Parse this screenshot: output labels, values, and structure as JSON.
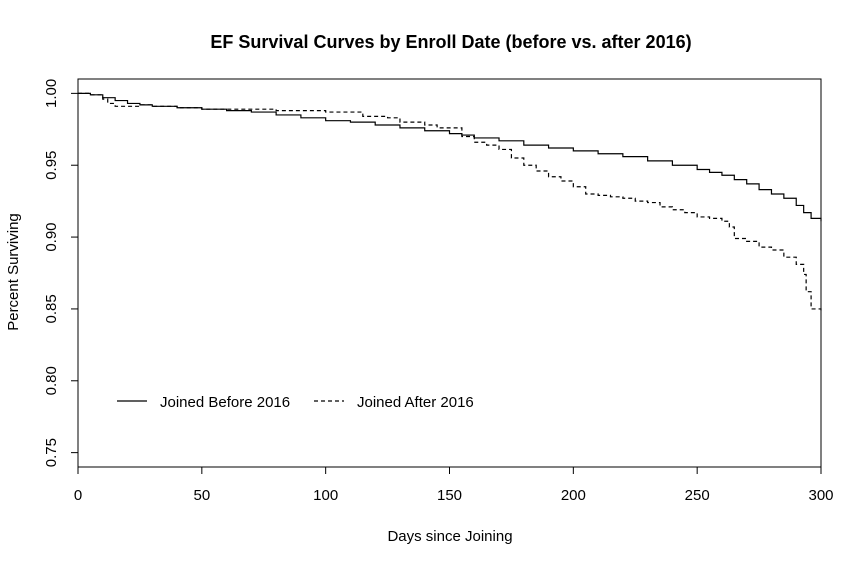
{
  "chart_data": {
    "type": "line",
    "title": "EF Survival Curves by Enroll Date (before vs. after 2016)",
    "xlabel": "Days since Joining",
    "ylabel": "Percent Surviving",
    "xlim": [
      0,
      300
    ],
    "ylim": [
      0.74,
      1.01
    ],
    "xticks": [
      0,
      50,
      100,
      150,
      200,
      250,
      300
    ],
    "xtick_labels": [
      "0",
      "50",
      "100",
      "150",
      "200",
      "250",
      "300"
    ],
    "yticks": [
      0.75,
      0.8,
      0.85,
      0.9,
      0.95,
      1.0
    ],
    "ytick_labels": [
      "0.75",
      "0.80",
      "0.85",
      "0.90",
      "0.95",
      "1.00"
    ],
    "grid": false,
    "legend_position": "bottom-left",
    "series": [
      {
        "name": "Joined Before 2016",
        "style": "solid",
        "color": "#000000",
        "x": [
          0,
          5,
          10,
          15,
          20,
          25,
          30,
          40,
          50,
          60,
          70,
          80,
          90,
          100,
          110,
          120,
          130,
          140,
          150,
          155,
          160,
          170,
          180,
          190,
          200,
          210,
          220,
          230,
          240,
          250,
          255,
          260,
          265,
          270,
          275,
          280,
          285,
          290,
          293,
          296,
          300
        ],
        "y": [
          1.0,
          0.999,
          0.997,
          0.995,
          0.993,
          0.992,
          0.991,
          0.99,
          0.989,
          0.988,
          0.987,
          0.985,
          0.983,
          0.981,
          0.98,
          0.978,
          0.976,
          0.974,
          0.972,
          0.971,
          0.969,
          0.967,
          0.964,
          0.962,
          0.96,
          0.958,
          0.956,
          0.953,
          0.95,
          0.947,
          0.945,
          0.943,
          0.94,
          0.937,
          0.933,
          0.93,
          0.927,
          0.922,
          0.917,
          0.913,
          0.911
        ]
      },
      {
        "name": "Joined After 2016",
        "style": "dashed",
        "color": "#000000",
        "x": [
          0,
          5,
          10,
          12,
          15,
          25,
          30,
          40,
          50,
          60,
          70,
          80,
          90,
          100,
          110,
          115,
          125,
          130,
          140,
          145,
          150,
          155,
          160,
          165,
          170,
          175,
          180,
          185,
          190,
          195,
          200,
          205,
          210,
          215,
          220,
          225,
          230,
          235,
          240,
          245,
          250,
          255,
          260,
          263,
          265,
          270,
          275,
          280,
          285,
          290,
          293,
          294,
          296,
          300
        ],
        "y": [
          1.0,
          0.999,
          0.996,
          0.993,
          0.991,
          0.992,
          0.991,
          0.99,
          0.989,
          0.989,
          0.989,
          0.988,
          0.988,
          0.987,
          0.987,
          0.984,
          0.983,
          0.98,
          0.978,
          0.976,
          0.976,
          0.97,
          0.966,
          0.964,
          0.961,
          0.955,
          0.95,
          0.946,
          0.942,
          0.939,
          0.935,
          0.93,
          0.929,
          0.928,
          0.927,
          0.925,
          0.924,
          0.921,
          0.919,
          0.917,
          0.914,
          0.913,
          0.911,
          0.907,
          0.899,
          0.897,
          0.893,
          0.891,
          0.886,
          0.881,
          0.874,
          0.862,
          0.85,
          0.847
        ]
      }
    ]
  }
}
